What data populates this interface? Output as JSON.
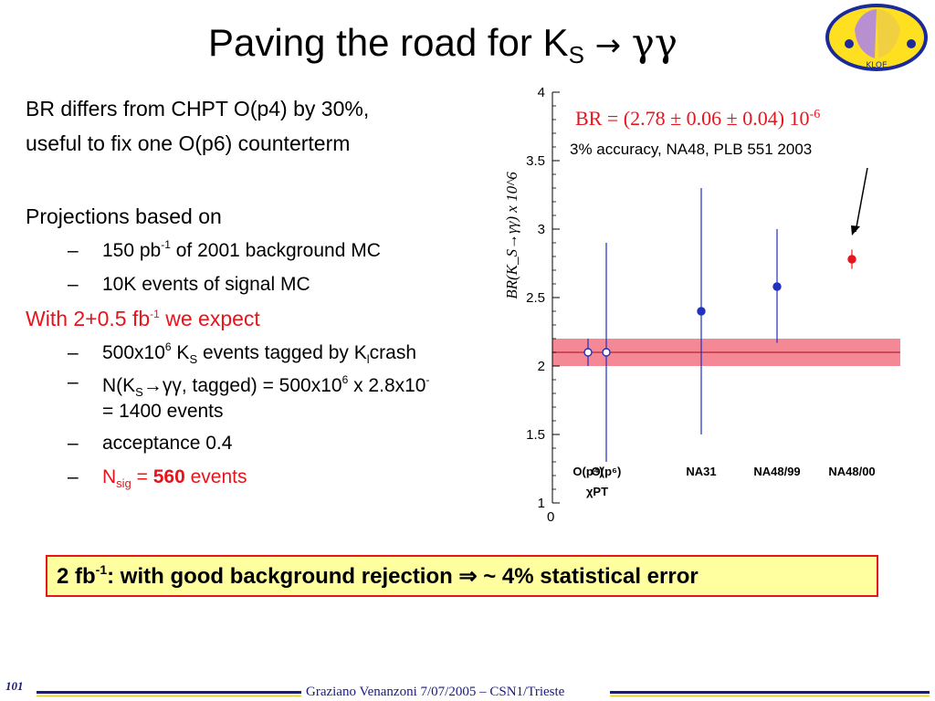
{
  "slide": {
    "title_main": "Paving the road for K",
    "title_sub": "S",
    "title_arrow": "→",
    "title_gamma": "γγ",
    "logo_text": "ɕᴅʟKLOə"
  },
  "bullets": {
    "b1": "BR differs from CHPT O(p4) by 30%,",
    "b2": "useful to fix one O(p6) counterterm",
    "b3": "Projections based on",
    "s1_pre": "150 pb",
    "s1_sup": "-1",
    "s1_post": " of 2001 background MC",
    "s2": "10K events of signal MC",
    "b4_pre": "With 2+0.5 fb",
    "b4_sup": "-1",
    "b4_post": " we expect",
    "s3_a": "500x10",
    "s3_sup": "6",
    "s3_b": " K",
    "s3_sub": "S",
    "s3_c": " events tagged by K",
    "s3_sub2": "l",
    "s3_d": "crash",
    "s4_a": "N(K",
    "s4_sub": "S",
    "s4_arrow": "→γγ",
    "s4_b": ", tagged) = 500x10",
    "s4_sup": "6",
    "s4_c": " x 2.8x10",
    "s4_sup2": "-",
    "s4_line2": "= 1400 events",
    "s5": "acceptance 0.4",
    "s6_a": "N",
    "s6_sub": "sig",
    "s6_b": " = ",
    "s6_c": "560",
    "s6_d": " events",
    "dash": "–"
  },
  "callout": {
    "br_text": "BR = (2.78 ± 0.06 ± 0.04) 10",
    "br_sup": "-6",
    "accuracy": "3% accuracy, NA48, PLB 551 2003"
  },
  "summary": {
    "pre": "2 fb",
    "sup": "-1",
    "post": ": with good background rejection ⇒ ~ 4% statistical error"
  },
  "footer": {
    "page": "101",
    "text": "Graziano Venanzoni 7/07/2005 – CSN1/Trieste"
  },
  "chart_data": {
    "type": "scatter",
    "ylabel": "BR(K_S→γγ) x 10^6",
    "ylim": [
      1,
      4
    ],
    "yticks": [
      "4",
      "3.5",
      "3",
      "2.5",
      "2",
      "1.5",
      "1"
    ],
    "x_origin_label": "0",
    "band": {
      "center": 2.1,
      "low": 2.0,
      "high": 2.2,
      "color": "#f06070"
    },
    "points": [
      {
        "label": "O(p⁴)",
        "y": 2.1,
        "err_low": 2.0,
        "err_high": 2.2,
        "open": true,
        "color": "#2030c0"
      },
      {
        "label": "O(p⁶)",
        "y": 2.1,
        "err_low": 1.3,
        "err_high": 2.9,
        "open": true,
        "color": "#2030c0"
      },
      {
        "label": "NA31",
        "y": 2.4,
        "err_low": 1.5,
        "err_high": 3.3,
        "open": false,
        "color": "#2030c0"
      },
      {
        "label": "NA48/99",
        "y": 2.58,
        "err_low": 2.17,
        "err_high": 3.0,
        "open": false,
        "color": "#2030c0"
      },
      {
        "label": "NA48/00",
        "y": 2.78,
        "err_low": 2.71,
        "err_high": 2.85,
        "open": false,
        "color": "#e8141c"
      }
    ],
    "group_label": "χPT"
  },
  "colors": {
    "accent_red": "#e8141c",
    "footer_blue": "#1a1a80",
    "box_yellow": "#ffff9f"
  }
}
